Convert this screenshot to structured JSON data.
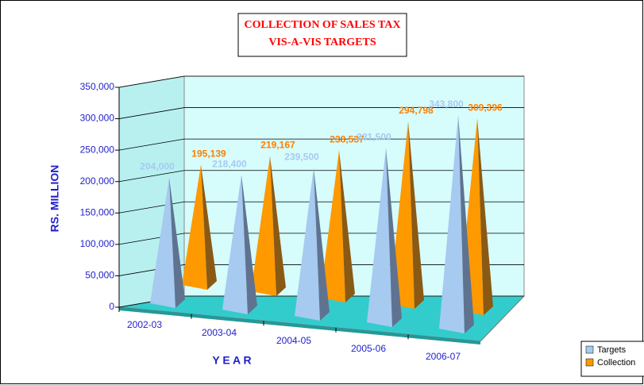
{
  "chart_data": {
    "type": "pyramid3d",
    "title": [
      "COLLECTION OF SALES TAX",
      "VIS-A-VIS TARGETS"
    ],
    "xlabel": "Y E A R",
    "ylabel": "RS. MILLION",
    "categories": [
      "2002-03",
      "2003-04",
      "2004-05",
      "2005-06",
      "2006-07"
    ],
    "series": [
      {
        "name": "Targets",
        "color": "#a6caf0",
        "values": [
          204000,
          218400,
          239500,
          281500,
          343800
        ],
        "value_labels": [
          "204,000",
          "218,400",
          "239,500",
          "281,500",
          "343,800"
        ]
      },
      {
        "name": "Collection",
        "color": "#ff9900",
        "values": [
          195139,
          219167,
          238537,
          294798,
          309396
        ],
        "value_labels": [
          "195,139",
          "219,167",
          "238,537",
          "294,798",
          "309,396"
        ]
      }
    ],
    "ylim": [
      0,
      350000
    ],
    "yticks": [
      0,
      {
        "value": 50000,
        "label": "50,000"
      },
      {
        "value": 100000,
        "label": "100,000"
      },
      {
        "value": 150000,
        "label": "150,000"
      },
      {
        "value": 200000,
        "label": "200,000"
      },
      {
        "value": 250000,
        "label": "250,000"
      },
      {
        "value": 300000,
        "label": "300,000"
      },
      {
        "value": 350000,
        "label": "350,000"
      }
    ],
    "grid": true,
    "legend": "bottom-right"
  }
}
